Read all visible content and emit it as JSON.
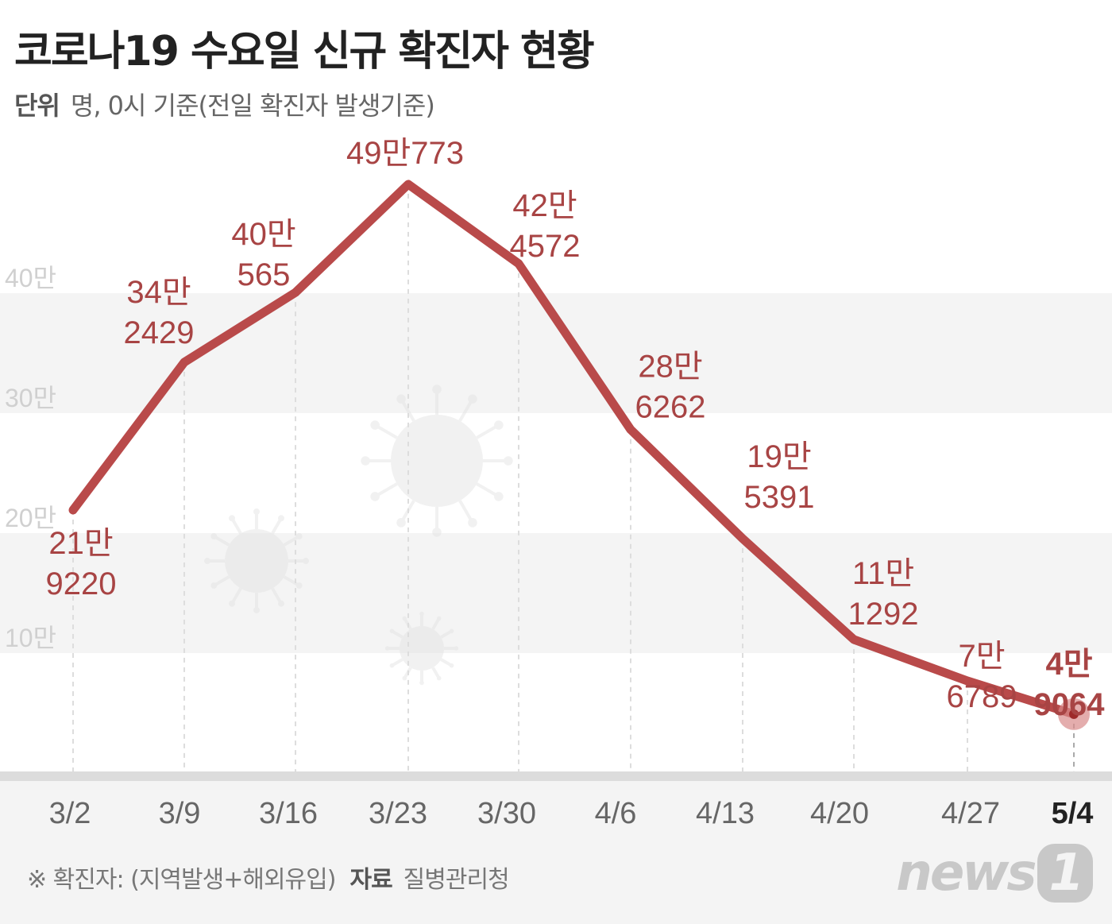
{
  "title": "코로나19 수요일 신규 확진자 현황",
  "subtitle": {
    "unit_label": "단위",
    "unit_text": "명, 0시 기준(전일 확진자 발생기준)"
  },
  "footer": {
    "note": "※ 확진자: (지역발생+해외유입)",
    "source_label": "자료",
    "source": "질병관리청"
  },
  "logo": "news1",
  "chart_data": {
    "type": "line",
    "title": "코로나19 수요일 신규 확진자 현황",
    "xlabel": "",
    "ylabel": "명",
    "categories": [
      "3/2",
      "3/9",
      "3/16",
      "3/23",
      "3/30",
      "4/6",
      "4/13",
      "4/20",
      "4/27",
      "5/4"
    ],
    "values": [
      219220,
      342429,
      400565,
      490773,
      424572,
      286262,
      195391,
      111292,
      76789,
      49064
    ],
    "data_labels": [
      [
        "21만",
        "9220"
      ],
      [
        "34만",
        "2429"
      ],
      [
        "40만",
        "565"
      ],
      [
        "49만773",
        ""
      ],
      [
        "42만",
        "4572"
      ],
      [
        "28만",
        "6262"
      ],
      [
        "19만",
        "5391"
      ],
      [
        "11만",
        "1292"
      ],
      [
        "7만",
        "6789"
      ],
      [
        "4만",
        "9064"
      ]
    ],
    "y_ticks": [
      {
        "value": 100000,
        "label": "10만"
      },
      {
        "value": 200000,
        "label": "20만"
      },
      {
        "value": 300000,
        "label": "30만"
      },
      {
        "value": 400000,
        "label": "40만"
      }
    ],
    "ylim": [
      0,
      500000
    ],
    "highlight_last": true,
    "line_color": "#b94a4a",
    "label_color": "#a84444"
  }
}
